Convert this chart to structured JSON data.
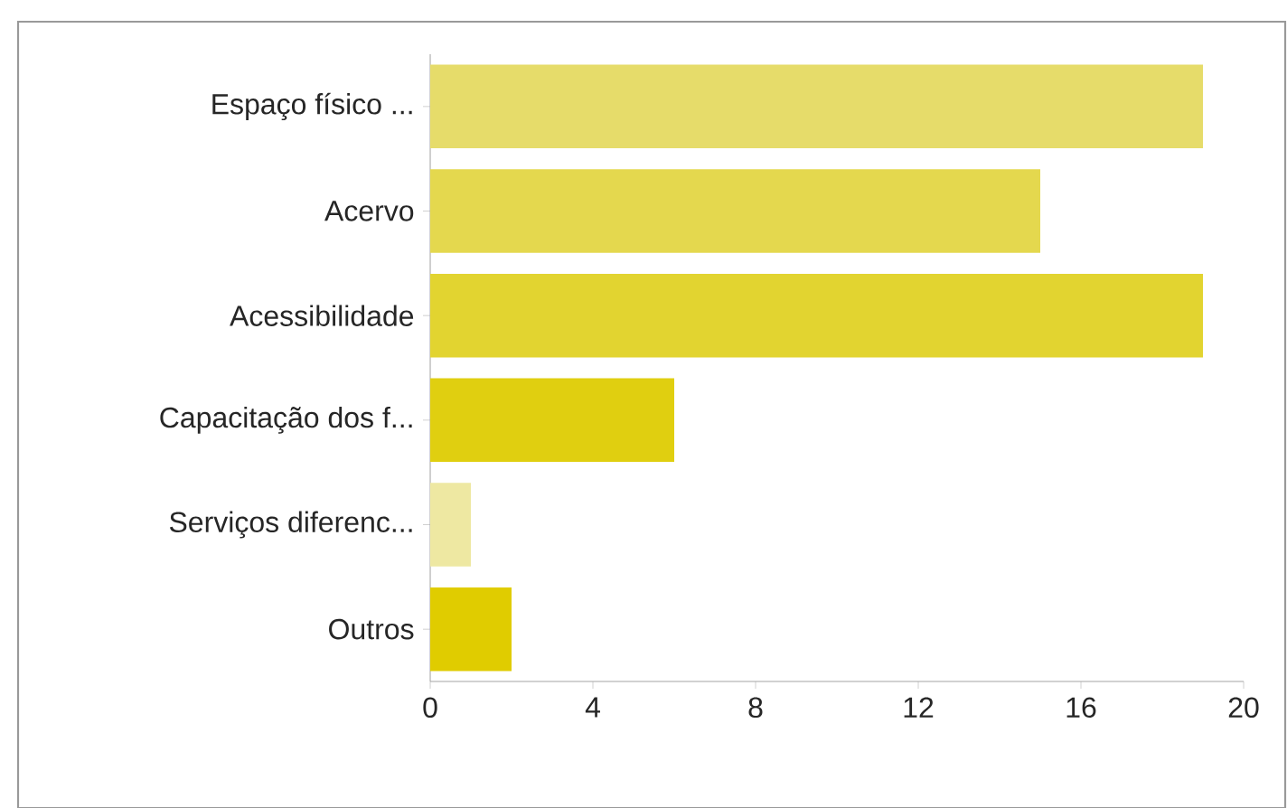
{
  "chart_data": {
    "type": "bar",
    "orientation": "horizontal",
    "categories": [
      "Espaço físico ...",
      "Acervo",
      "Acessibilidade",
      "Capacitação dos f...",
      "Serviços diferenc...",
      "Outros"
    ],
    "values": [
      19,
      15,
      19,
      6,
      1,
      2
    ],
    "colors": [
      "#e6dc6a",
      "#e4d84e",
      "#e2d430",
      "#e0cf10",
      "#eee8a2",
      "#e0cc00"
    ],
    "xlim": [
      0,
      20
    ],
    "xticks": [
      0,
      4,
      8,
      12,
      16,
      20
    ]
  }
}
